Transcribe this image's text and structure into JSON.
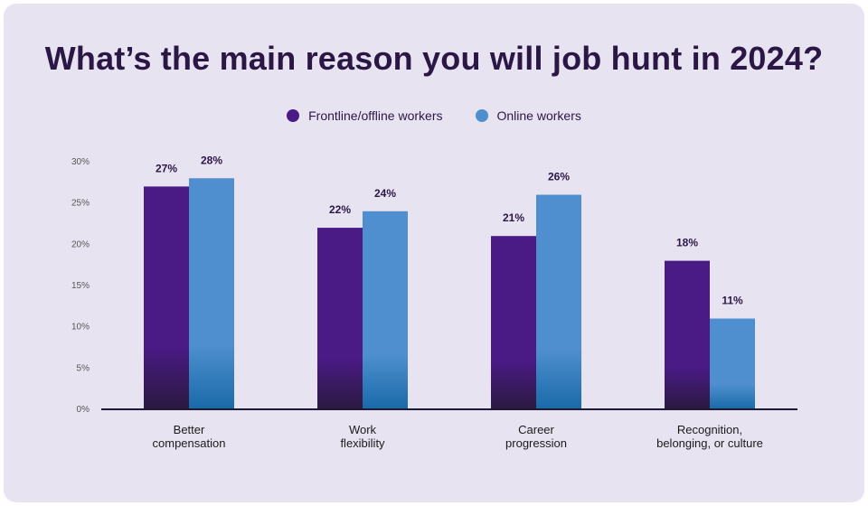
{
  "chart_data": {
    "type": "bar",
    "title": "What’s the main reason you will job hunt in 2024?",
    "categories": [
      [
        "Better",
        "compensation"
      ],
      [
        "Work",
        "flexibility"
      ],
      [
        "Career",
        "progression"
      ],
      [
        "Recognition,",
        "belonging, or culture"
      ]
    ],
    "series": [
      {
        "name": "Frontline/offline workers",
        "color": "#4a1a85",
        "values": [
          27,
          22,
          21,
          18
        ],
        "labels": [
          "27%",
          "22%",
          "21%",
          "18%"
        ]
      },
      {
        "name": "Online workers",
        "color": "#4f8fcf",
        "values": [
          28,
          24,
          26,
          11
        ],
        "labels": [
          "28%",
          "24%",
          "26%",
          "11%"
        ]
      }
    ],
    "ylim": [
      0,
      30
    ],
    "yticks": [
      0,
      5,
      10,
      15,
      20,
      25,
      30
    ],
    "ytick_labels": [
      "0%",
      "5%",
      "10%",
      "15%",
      "20%",
      "25%",
      "30%"
    ],
    "legend_position": "top-center",
    "grid": false
  }
}
